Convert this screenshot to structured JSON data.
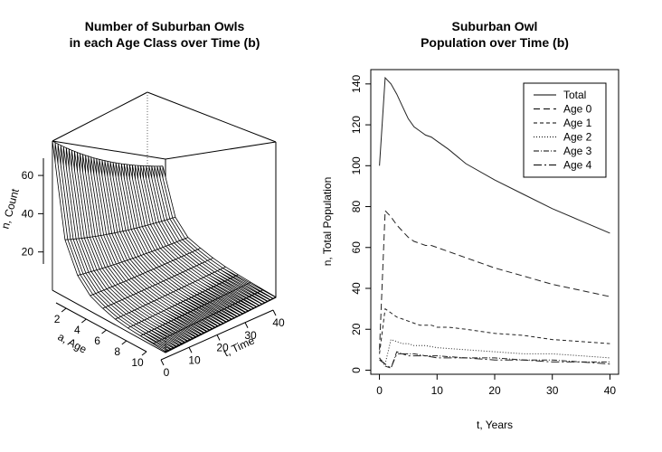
{
  "chart_data": [
    {
      "type": "surface",
      "title_lines": [
        "Number of Suburban Owls",
        "in each Age Class over Time (b)"
      ],
      "xlabel": "a, Age",
      "ylabel": "t, Time",
      "zlabel": "n, Count",
      "x_ticks": [
        "2",
        "4",
        "6",
        "8",
        "10"
      ],
      "y_ticks": [
        "0",
        "10",
        "20",
        "30",
        "40"
      ],
      "z_ticks": [
        "20",
        "40",
        "60"
      ],
      "xlim": [
        1,
        10
      ],
      "ylim": [
        0,
        40
      ],
      "zlim": [
        0,
        78
      ],
      "surface_profile": {
        "a": [
          1,
          2,
          3,
          4,
          5,
          6,
          7,
          8,
          9,
          10
        ],
        "n_at_t0": [
          78,
          30,
          15,
          8,
          5,
          3,
          2,
          1.5,
          1,
          0.5
        ],
        "n_at_t40": [
          36,
          13,
          6,
          4,
          2.5,
          1.5,
          1,
          0.7,
          0.4,
          0.2
        ]
      }
    },
    {
      "type": "line",
      "title_lines": [
        "Suburban Owl",
        "Population over Time (b)"
      ],
      "xlabel": "t, Years",
      "ylabel": "n, Total Population",
      "xlim": [
        -1.5,
        41.5
      ],
      "ylim": [
        -2,
        147
      ],
      "x_ticks": [
        0,
        10,
        20,
        30,
        40
      ],
      "y_ticks": [
        0,
        20,
        40,
        60,
        80,
        100,
        120,
        140
      ],
      "legend_position": "top-right",
      "series": [
        {
          "name": "Total",
          "dash": "",
          "x": [
            0,
            1,
            2,
            3,
            4,
            5,
            6,
            7,
            8,
            9,
            10,
            12,
            15,
            20,
            25,
            30,
            35,
            40
          ],
          "y": [
            100,
            143,
            140,
            135,
            129,
            123,
            119,
            117,
            115,
            114,
            112,
            108,
            101,
            93,
            86,
            79,
            73,
            67
          ]
        },
        {
          "name": "Age 0",
          "dash": "7,4",
          "x": [
            0,
            1,
            2,
            3,
            4,
            5,
            6,
            7,
            8,
            9,
            10,
            12,
            15,
            20,
            25,
            30,
            35,
            40
          ],
          "y": [
            10,
            78,
            75,
            71,
            68,
            65,
            63,
            62,
            61,
            61,
            60,
            58,
            55,
            50,
            46,
            42,
            39,
            36
          ]
        },
        {
          "name": "Age 1",
          "dash": "4,3",
          "x": [
            0,
            1,
            2,
            3,
            4,
            5,
            6,
            7,
            8,
            9,
            10,
            12,
            15,
            20,
            25,
            30,
            35,
            40
          ],
          "y": [
            8,
            30,
            28,
            26,
            25,
            24,
            23,
            22,
            22,
            22,
            21,
            21,
            20,
            18,
            17,
            15,
            14,
            13
          ]
        },
        {
          "name": "Age 2",
          "dash": "1,2",
          "x": [
            0,
            1,
            2,
            3,
            4,
            5,
            6,
            8,
            10,
            15,
            20,
            25,
            30,
            35,
            40
          ],
          "y": [
            6,
            3,
            15,
            14,
            13,
            13,
            12,
            12,
            11,
            10,
            9,
            8,
            8,
            7,
            6
          ]
        },
        {
          "name": "Age 3",
          "dash": "6,2,1,2",
          "x": [
            0,
            1,
            2,
            3,
            4,
            5,
            6,
            8,
            10,
            15,
            20,
            25,
            30,
            35,
            40
          ],
          "y": [
            6,
            2,
            1,
            9,
            8,
            8,
            8,
            7,
            7,
            6,
            6,
            5,
            5,
            4,
            4
          ]
        },
        {
          "name": "Age 4",
          "dash": "9,3,2,3",
          "x": [
            0,
            1,
            2,
            3,
            4,
            5,
            6,
            8,
            10,
            15,
            20,
            25,
            30,
            35,
            40
          ],
          "y": [
            5,
            3,
            1,
            8,
            8,
            7,
            7,
            7,
            6,
            6,
            5,
            5,
            4,
            4,
            3
          ]
        }
      ]
    }
  ]
}
